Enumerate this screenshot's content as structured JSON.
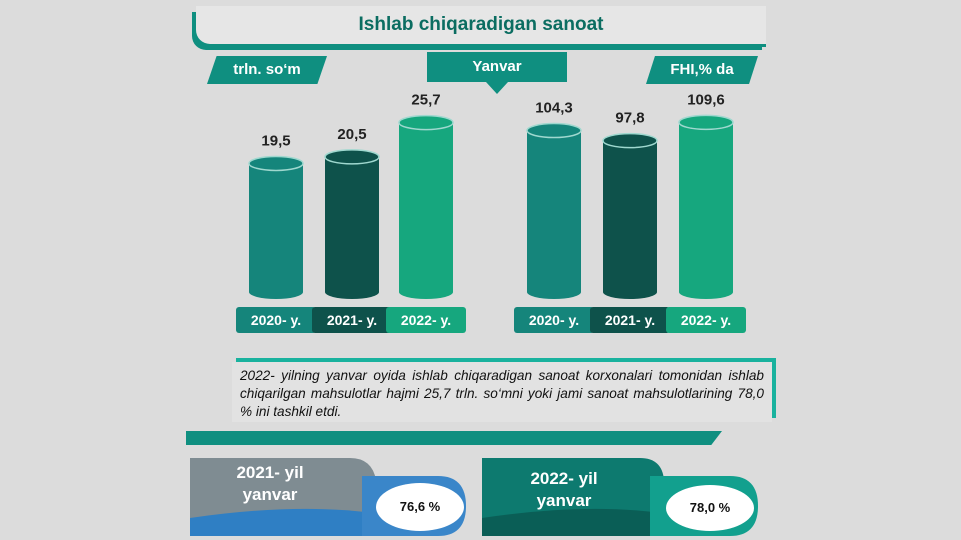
{
  "title": "Ishlab chiqaradigan sanoat",
  "unit_label": "trln. so‘m",
  "month_label": "Yanvar",
  "index_label": "FHI,% da",
  "chart_data": [
    {
      "type": "bar",
      "categories": [
        "2020- y.",
        "2021- y.",
        "2022- y."
      ],
      "values": [
        19.5,
        20.5,
        25.7
      ],
      "value_labels": [
        "19,5",
        "20,5",
        "25,7"
      ],
      "ylim": [
        0,
        27
      ],
      "colors": [
        "#15857b",
        "#0e524b",
        "#16a77e"
      ]
    },
    {
      "type": "bar",
      "categories": [
        "2020- y.",
        "2021- y.",
        "2022- y."
      ],
      "values": [
        104.3,
        97.8,
        109.6
      ],
      "value_labels": [
        "104,3",
        "97,8",
        "109,6"
      ],
      "ylim": [
        0,
        115
      ],
      "colors": [
        "#15857b",
        "#0e524b",
        "#16a77e"
      ]
    }
  ],
  "description": "2022- yilning yanvar oyida ishlab chiqaradigan sanoat korxonalari tomonidan ishlab chiqarilgan mahsulotlar hajmi 25,7 trln. so‘mni yoki jami sanoat mahsulotlarining 78,0 % ini tashkil etdi.",
  "shares": [
    {
      "year": "2021- yil",
      "month": "yanvar",
      "percent": "76,6 %",
      "color": "#3a86c9"
    },
    {
      "year": "2022- yil",
      "month": "yanvar",
      "percent": "78,0 %",
      "color": "#12a08e"
    }
  ]
}
